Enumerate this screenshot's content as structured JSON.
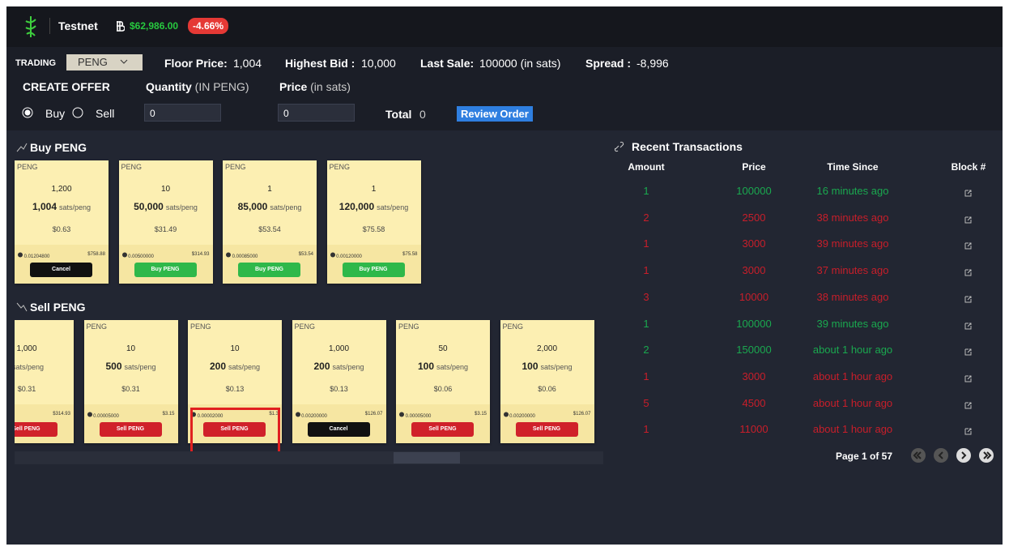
{
  "header": {
    "network": "Testnet",
    "btc_price": "$62,986.00",
    "change": "-4.66%"
  },
  "trading": {
    "label": "TRADING",
    "token": "PENG",
    "floor_label": "Floor Price:",
    "floor": "1,004",
    "highest_label": "Highest Bid :",
    "highest": "10,000",
    "last_sale_label": "Last Sale:",
    "last_sale": "100000 (in sats)",
    "spread_label": "Spread :",
    "spread": "-8,996"
  },
  "create_offer": {
    "title": "CREATE OFFER",
    "quantity_label": "Quantity",
    "quantity_unit": "(IN PENG)",
    "price_label": "Price",
    "price_unit": "(in sats)",
    "buy": "Buy",
    "sell": "Sell",
    "quantity_value": "0",
    "price_value": "0",
    "total_label": "Total",
    "total": "0",
    "review": "Review Order"
  },
  "buy_section": {
    "title": "Buy PENG",
    "cards": [
      {
        "token": "PENG",
        "quantity": "1,200",
        "price": "1,004",
        "unit": "sats/peng",
        "usd": "$0.63",
        "btc": "0.01204800",
        "total_usd": "$758.88",
        "action": "Cancel"
      },
      {
        "token": "PENG",
        "quantity": "10",
        "price": "50,000",
        "unit": "sats/peng",
        "usd": "$31.49",
        "btc": "0.00500000",
        "total_usd": "$314.93",
        "action": "Buy PENG"
      },
      {
        "token": "PENG",
        "quantity": "1",
        "price": "85,000",
        "unit": "sats/peng",
        "usd": "$53.54",
        "btc": "0.00085000",
        "total_usd": "$53.54",
        "action": "Buy PENG"
      },
      {
        "token": "PENG",
        "quantity": "1",
        "price": "120,000",
        "unit": "sats/peng",
        "usd": "$75.58",
        "btc": "0.00120000",
        "total_usd": "$75.58",
        "action": "Buy PENG"
      }
    ]
  },
  "sell_section": {
    "title": "Sell PENG",
    "cards": [
      {
        "quantity": "1,000",
        "unit": "sats/peng",
        "usd": "$0.31",
        "total_usd": "$314.93",
        "action": "Sell PENG"
      },
      {
        "token": "PENG",
        "quantity": "10",
        "price": "500",
        "unit": "sats/peng",
        "usd": "$0.31",
        "btc": "0.00005000",
        "total_usd": "$3.15",
        "action": "Sell PENG"
      },
      {
        "token": "PENG",
        "quantity": "10",
        "price": "200",
        "unit": "sats/peng",
        "usd": "$0.13",
        "btc": "0.00002000",
        "total_usd": "$1.3",
        "action": "Sell PENG"
      },
      {
        "token": "PENG",
        "quantity": "1,000",
        "price": "200",
        "unit": "sats/peng",
        "usd": "$0.13",
        "btc": "0.00200000",
        "total_usd": "$126.07",
        "action": "Cancel"
      },
      {
        "token": "PENG",
        "quantity": "50",
        "price": "100",
        "unit": "sats/peng",
        "usd": "$0.06",
        "btc": "0.00005000",
        "total_usd": "$3.15",
        "action": "Sell PENG"
      },
      {
        "token": "PENG",
        "quantity": "2,000",
        "price": "100",
        "unit": "sats/peng",
        "usd": "$0.06",
        "btc": "0.00200000",
        "total_usd": "$126.07",
        "action": "Sell PENG"
      }
    ]
  },
  "transactions": {
    "title": "Recent Transactions",
    "columns": [
      "Amount",
      "Price",
      "Time Since",
      "Block #"
    ],
    "rows": [
      {
        "amount": "1",
        "price": "100000",
        "time": "16 minutes ago",
        "color": "#1aa84f"
      },
      {
        "amount": "2",
        "price": "2500",
        "time": "38 minutes ago",
        "color": "#c81e2a"
      },
      {
        "amount": "1",
        "price": "3000",
        "time": "39 minutes ago",
        "color": "#c81e2a"
      },
      {
        "amount": "1",
        "price": "3000",
        "time": "37 minutes ago",
        "color": "#c81e2a"
      },
      {
        "amount": "3",
        "price": "10000",
        "time": "38 minutes ago",
        "color": "#c81e2a"
      },
      {
        "amount": "1",
        "price": "100000",
        "time": "39 minutes ago",
        "color": "#1aa84f"
      },
      {
        "amount": "2",
        "price": "150000",
        "time": "about 1 hour ago",
        "color": "#1aa84f"
      },
      {
        "amount": "1",
        "price": "3000",
        "time": "about 1 hour ago",
        "color": "#c81e2a"
      },
      {
        "amount": "5",
        "price": "4500",
        "time": "about 1 hour ago",
        "color": "#c81e2a"
      },
      {
        "amount": "1",
        "price": "11000",
        "time": "about 1 hour ago",
        "color": "#c81e2a"
      }
    ],
    "page": "Page 1 of 57"
  }
}
